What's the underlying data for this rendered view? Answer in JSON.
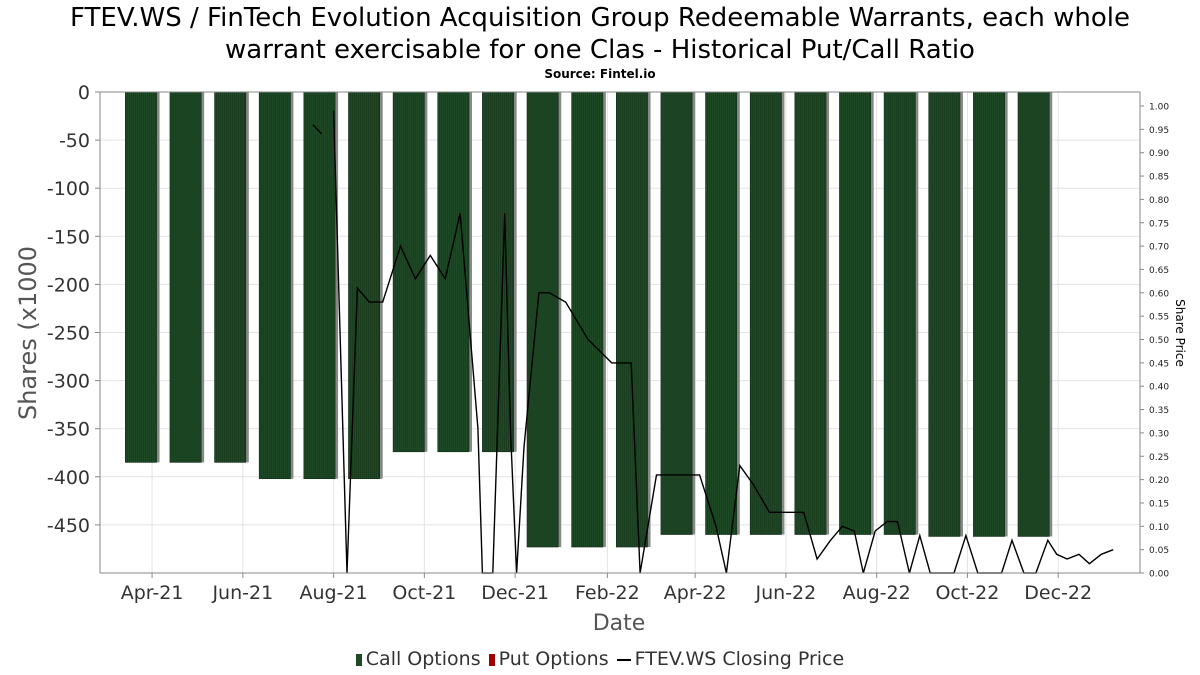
{
  "title_line1": "FTEV.WS / FinTech Evolution Acquisition Group Redeemable Warrants, each whole",
  "title_line2": "warrant exercisable for one Clas - Historical Put/Call Ratio",
  "source": "Source: Fintel.io",
  "legend": {
    "call": "Call Options",
    "put": "Put Options",
    "price": "FTEV.WS Closing Price"
  },
  "colors": {
    "call": "#1e4a26",
    "put": "#a00000",
    "price_line": "#000000",
    "grid": "#e3e3e3"
  },
  "chart_data": {
    "type": "bar",
    "xlabel": "Date",
    "ylabel": "Shares (x1000",
    "ylabel_right": "Share Price",
    "ylim": [
      -500,
      0
    ],
    "y_ticks": [
      0,
      -50,
      -100,
      -150,
      -200,
      -250,
      -300,
      -350,
      -400,
      -450
    ],
    "y2lim": [
      0,
      1.03
    ],
    "y2_ticks": [
      "0.00",
      "0.05",
      "0.10",
      "0.15",
      "0.20",
      "0.25",
      "0.30",
      "0.35",
      "0.40",
      "0.45",
      "0.50",
      "0.55",
      "0.60",
      "0.65",
      "0.70",
      "0.75",
      "0.80",
      "0.85",
      "0.90",
      "0.95",
      "1.00"
    ],
    "x_range": [
      "2021-02-25",
      "2023-01-25"
    ],
    "x_ticks": [
      {
        "date": "2021-04-01",
        "label": "Apr-21"
      },
      {
        "date": "2021-06-01",
        "label": "Jun-21"
      },
      {
        "date": "2021-08-01",
        "label": "Aug-21"
      },
      {
        "date": "2021-10-01",
        "label": "Oct-21"
      },
      {
        "date": "2021-12-01",
        "label": "Dec-21"
      },
      {
        "date": "2022-02-01",
        "label": "Feb-22"
      },
      {
        "date": "2022-04-01",
        "label": "Apr-22"
      },
      {
        "date": "2022-06-01",
        "label": "Jun-22"
      },
      {
        "date": "2022-08-01",
        "label": "Aug-22"
      },
      {
        "date": "2022-10-01",
        "label": "Oct-22"
      },
      {
        "date": "2022-12-01",
        "label": "Dec-22"
      }
    ],
    "call_bars": [
      {
        "start": "2021-03-14",
        "end": "2021-04-04",
        "value": -385
      },
      {
        "start": "2021-04-13",
        "end": "2021-05-04",
        "value": -385
      },
      {
        "start": "2021-05-13",
        "end": "2021-06-03",
        "value": -385
      },
      {
        "start": "2021-06-12",
        "end": "2021-07-03",
        "value": -402
      },
      {
        "start": "2021-07-12",
        "end": "2021-08-02",
        "value": -402
      },
      {
        "start": "2021-08-11",
        "end": "2021-09-01",
        "value": -402
      },
      {
        "start": "2021-09-10",
        "end": "2021-10-01",
        "value": -374
      },
      {
        "start": "2021-10-10",
        "end": "2021-10-31",
        "value": -374
      },
      {
        "start": "2021-11-09",
        "end": "2021-11-30",
        "value": -374
      },
      {
        "start": "2021-12-09",
        "end": "2021-12-30",
        "value": -473
      },
      {
        "start": "2022-01-08",
        "end": "2022-01-29",
        "value": -473
      },
      {
        "start": "2022-02-07",
        "end": "2022-02-28",
        "value": -473
      },
      {
        "start": "2022-03-09",
        "end": "2022-03-30",
        "value": -460
      },
      {
        "start": "2022-04-08",
        "end": "2022-04-29",
        "value": -460
      },
      {
        "start": "2022-05-08",
        "end": "2022-05-29",
        "value": -460
      },
      {
        "start": "2022-06-07",
        "end": "2022-06-28",
        "value": -460
      },
      {
        "start": "2022-07-07",
        "end": "2022-07-28",
        "value": -460
      },
      {
        "start": "2022-08-06",
        "end": "2022-08-27",
        "value": -460
      },
      {
        "start": "2022-09-05",
        "end": "2022-09-26",
        "value": -462
      },
      {
        "start": "2022-10-05",
        "end": "2022-10-26",
        "value": -462
      },
      {
        "start": "2022-11-04",
        "end": "2022-11-25",
        "value": -462
      }
    ],
    "price_segments": [
      [
        [
          "2021-07-18",
          0.96
        ],
        [
          "2021-07-24",
          0.94
        ]
      ],
      [
        [
          "2021-08-01",
          0.99
        ],
        [
          "2021-08-10",
          0.0
        ],
        [
          "2021-08-17",
          0.61
        ],
        [
          "2021-08-25",
          0.58
        ],
        [
          "2021-09-03",
          0.58
        ],
        [
          "2021-09-15",
          0.7
        ],
        [
          "2021-09-25",
          0.63
        ],
        [
          "2021-10-05",
          0.68
        ],
        [
          "2021-10-15",
          0.63
        ],
        [
          "2021-10-25",
          0.77
        ],
        [
          "2021-11-06",
          0.31
        ],
        [
          "2021-11-09",
          0.0
        ],
        [
          "2021-11-16",
          0.0
        ],
        [
          "2021-11-24",
          0.77
        ],
        [
          "2021-11-28",
          0.3
        ],
        [
          "2021-12-02",
          0.0
        ],
        [
          "2021-12-07",
          0.27
        ],
        [
          "2021-12-17",
          0.6
        ],
        [
          "2021-12-24",
          0.6
        ],
        [
          "2022-01-04",
          0.58
        ],
        [
          "2022-01-19",
          0.5
        ],
        [
          "2022-02-04",
          0.45
        ],
        [
          "2022-02-17",
          0.45
        ],
        [
          "2022-02-23",
          0.0
        ],
        [
          "2022-03-06",
          0.21
        ],
        [
          "2022-03-18",
          0.21
        ],
        [
          "2022-04-04",
          0.21
        ],
        [
          "2022-04-15",
          0.1
        ],
        [
          "2022-04-22",
          0.0
        ],
        [
          "2022-05-01",
          0.23
        ],
        [
          "2022-05-10",
          0.19
        ],
        [
          "2022-05-21",
          0.13
        ],
        [
          "2022-06-01",
          0.13
        ],
        [
          "2022-06-13",
          0.13
        ],
        [
          "2022-06-22",
          0.03
        ],
        [
          "2022-07-01",
          0.07
        ],
        [
          "2022-07-09",
          0.1
        ],
        [
          "2022-07-17",
          0.09
        ],
        [
          "2022-07-23",
          0.0
        ],
        [
          "2022-07-31",
          0.09
        ],
        [
          "2022-08-08",
          0.11
        ],
        [
          "2022-08-15",
          0.11
        ],
        [
          "2022-08-23",
          0.0
        ],
        [
          "2022-08-30",
          0.08
        ],
        [
          "2022-09-06",
          0.0
        ],
        [
          "2022-09-14",
          0.0
        ],
        [
          "2022-09-22",
          0.0
        ],
        [
          "2022-09-30",
          0.08
        ],
        [
          "2022-10-08",
          0.0
        ],
        [
          "2022-10-16",
          0.0
        ],
        [
          "2022-10-24",
          0.0
        ],
        [
          "2022-10-31",
          0.07
        ],
        [
          "2022-11-08",
          0.0
        ],
        [
          "2022-11-16",
          0.0
        ],
        [
          "2022-11-24",
          0.07
        ],
        [
          "2022-11-30",
          0.04
        ],
        [
          "2022-12-07",
          0.03
        ],
        [
          "2022-12-15",
          0.04
        ],
        [
          "2022-12-22",
          0.02
        ],
        [
          "2022-12-30",
          0.04
        ],
        [
          "2023-01-07",
          0.05
        ]
      ]
    ]
  }
}
